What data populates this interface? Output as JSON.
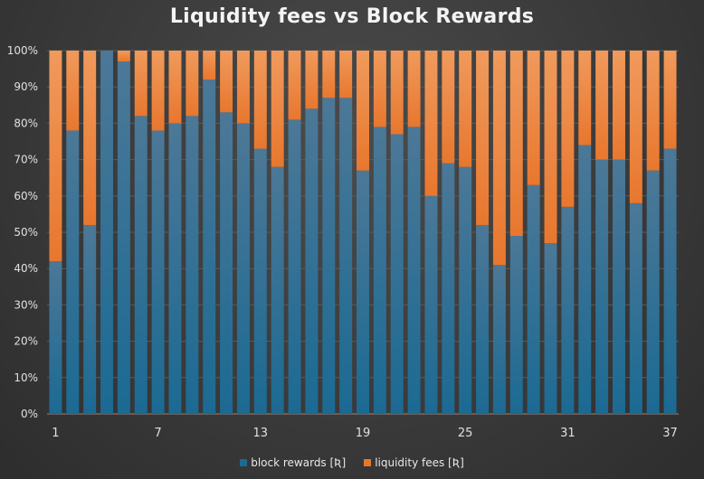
{
  "chart_data": {
    "type": "bar",
    "stacked": true,
    "percent": true,
    "title": "Liquidity fees vs Block Rewards",
    "xlabel": "",
    "ylabel": "",
    "ylim": [
      0,
      100
    ],
    "yticks": [
      "0%",
      "10%",
      "20%",
      "30%",
      "40%",
      "50%",
      "60%",
      "70%",
      "80%",
      "90%",
      "100%"
    ],
    "xticks": [
      "1",
      "7",
      "13",
      "19",
      "25",
      "31",
      "37"
    ],
    "categories": [
      1,
      2,
      3,
      4,
      5,
      6,
      7,
      8,
      9,
      10,
      11,
      12,
      13,
      14,
      15,
      16,
      17,
      18,
      19,
      20,
      21,
      22,
      23,
      24,
      25,
      26,
      27,
      28,
      29,
      30,
      31,
      32,
      33,
      34,
      35,
      36,
      37
    ],
    "series": [
      {
        "name": "block rewards [Ʀ]",
        "color": "#1b6a93",
        "values": [
          42,
          78,
          52,
          100,
          97,
          82,
          78,
          80,
          82,
          92,
          83,
          80,
          73,
          68,
          81,
          84,
          87,
          87,
          67,
          79,
          77,
          79,
          60,
          69,
          68,
          52,
          41,
          49,
          63,
          47,
          57,
          74,
          70,
          70,
          58,
          67,
          73
        ]
      },
      {
        "name": "liquidity fees [Ʀ]",
        "color": "#e8772e",
        "values": [
          58,
          22,
          48,
          0,
          3,
          18,
          22,
          20,
          18,
          8,
          17,
          20,
          27,
          32,
          19,
          16,
          13,
          13,
          33,
          21,
          23,
          21,
          40,
          31,
          32,
          48,
          59,
          51,
          37,
          53,
          43,
          26,
          30,
          30,
          42,
          33,
          27
        ]
      }
    ],
    "legend_position": "bottom"
  }
}
